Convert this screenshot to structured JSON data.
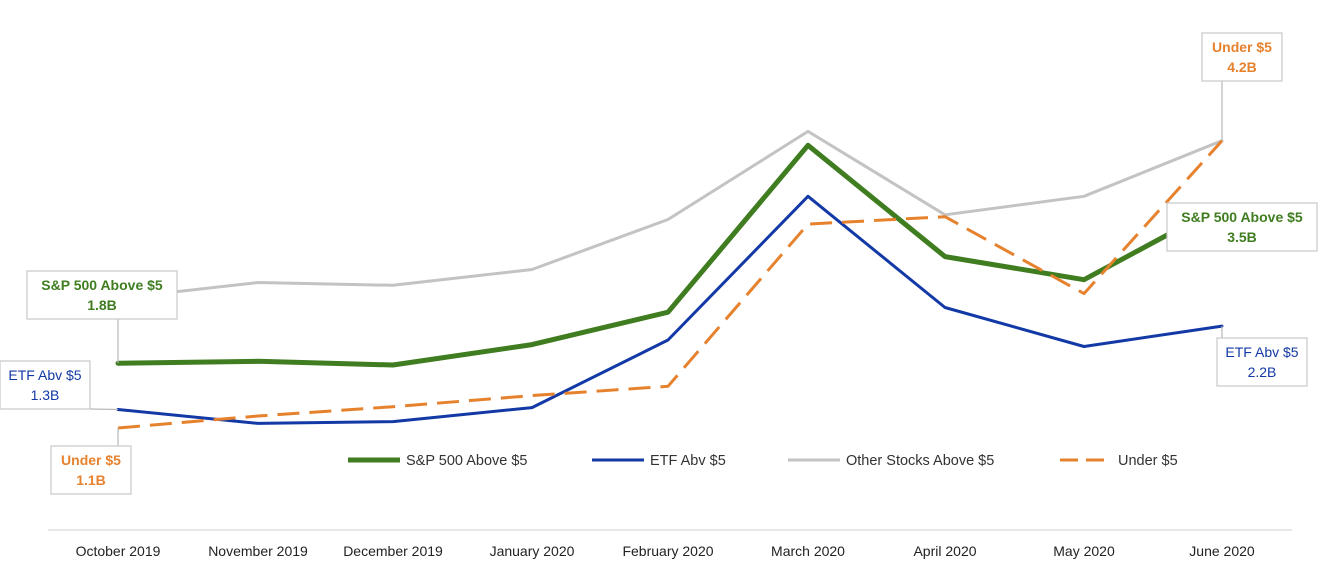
{
  "chart_data": {
    "type": "line",
    "categories": [
      "October 2019",
      "November 2019",
      "December 2019",
      "January 2020",
      "February 2020",
      "March 2020",
      "April 2020",
      "May 2020",
      "June 2020"
    ],
    "unit": "B",
    "ylim": [
      0,
      5.2
    ],
    "grid": false,
    "legend_position": "inside-bottom",
    "series": [
      {
        "name": "S&P 500 Above $5",
        "color": "#3f7d20",
        "dash": "solid",
        "width": 5,
        "values": [
          1.8,
          1.82,
          1.78,
          2.0,
          2.35,
          4.15,
          2.95,
          2.7,
          3.5
        ]
      },
      {
        "name": "ETF Abv $5",
        "color": "#1239a6",
        "dash": "solid",
        "width": 3,
        "values": [
          1.3,
          1.15,
          1.17,
          1.32,
          2.05,
          3.6,
          2.4,
          1.98,
          2.2
        ]
      },
      {
        "name": "Other Stocks Above $5",
        "color": "#c3c3c3",
        "dash": "solid",
        "width": 3,
        "values": [
          2.5,
          2.67,
          2.64,
          2.81,
          3.35,
          4.3,
          3.4,
          3.6,
          4.2
        ]
      },
      {
        "name": "Under $5",
        "color": "#e6822e",
        "dash": "dashed",
        "width": 3,
        "values": [
          1.1,
          1.23,
          1.33,
          1.45,
          1.55,
          3.3,
          3.38,
          2.55,
          4.2
        ]
      }
    ],
    "annotations": [
      {
        "series": 0,
        "point": 0,
        "line1": "S&P 500 Above $5",
        "line2": "1.8B"
      },
      {
        "series": 1,
        "point": 0,
        "line1": "ETF Abv $5",
        "line2": "1.3B"
      },
      {
        "series": 3,
        "point": 0,
        "line1": "Under $5",
        "line2": "1.1B"
      },
      {
        "series": 3,
        "point": 8,
        "line1": "Under $5",
        "line2": "4.2B"
      },
      {
        "series": 0,
        "point": 8,
        "line1": "S&P 500 Above $5",
        "line2": "3.5B"
      },
      {
        "series": 1,
        "point": 8,
        "line1": "ETF Abv $5",
        "line2": "2.2B"
      }
    ]
  }
}
